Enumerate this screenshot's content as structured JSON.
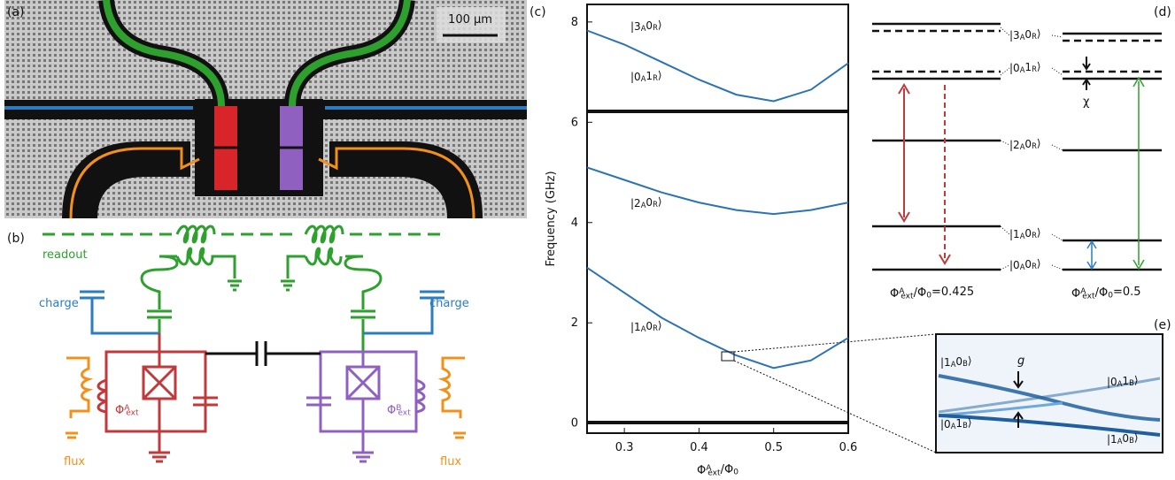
{
  "panel_labels": [
    "(a)",
    "(b)",
    "(c)",
    "(d)",
    "(e)"
  ],
  "micrograph": {
    "scale_bar": "100 μm"
  },
  "circuit": {
    "readout": "readout",
    "charge_left": "charge",
    "charge_right": "charge",
    "flux_left": "flux",
    "flux_right": "flux",
    "phi_a": "Φ^{A}_{ext}",
    "phi_b": "Φ^{B}_{ext}"
  },
  "chart_data": {
    "type": "line",
    "x": [
      0.25,
      0.3,
      0.35,
      0.4,
      0.45,
      0.5,
      0.55,
      0.6
    ],
    "series": [
      {
        "color": "#2b73b3",
        "values": [
          7.83,
          7.55,
          7.2,
          6.85,
          6.55,
          6.42,
          6.65,
          7.18
        ]
      },
      {
        "color": "#2b73b3",
        "values": [
          5.1,
          4.85,
          4.6,
          4.4,
          4.25,
          4.17,
          4.25,
          4.4
        ]
      },
      {
        "color": "#2b73b3",
        "values": [
          3.1,
          2.6,
          2.1,
          1.7,
          1.35,
          1.1,
          1.25,
          1.7
        ]
      }
    ],
    "xlim": [
      0.25,
      0.6
    ],
    "ylim": [
      -0.2,
      8.35
    ],
    "xticks": [
      0.3,
      0.4,
      0.5,
      0.6
    ],
    "yticks": [
      0,
      2,
      4,
      6,
      8
    ],
    "xlabel": "Φ^{A}_{ext}/Φ_{0}",
    "ylabel": "Frequency (GHz)",
    "state_labels": [
      "|3_{A}0_{R}⟩",
      "|0_{A}1_{R}⟩",
      "|2_{A}0_{R}⟩",
      "|1_{A}0_{R}⟩"
    ]
  },
  "levels": {
    "labels": [
      "|3_{A}0_{R}⟩",
      "|0_{A}1_{R}⟩",
      "|2_{A}0_{R}⟩",
      "|1_{A}0_{R}⟩",
      "|0_{A}0_{R}⟩"
    ],
    "chi": "χ",
    "left_caption": "Φ^{A}_{ext}/Φ_{0}=0.425",
    "right_caption": "Φ^{A}_{ext}/Φ_{0}=0.5"
  },
  "zoom": {
    "g": "g",
    "labels": [
      "|1_{A}0_{B}⟩",
      "|0_{A}1_{B}⟩",
      "|0_{A}1_{B}⟩",
      "|1_{A}0_{B}⟩"
    ]
  }
}
